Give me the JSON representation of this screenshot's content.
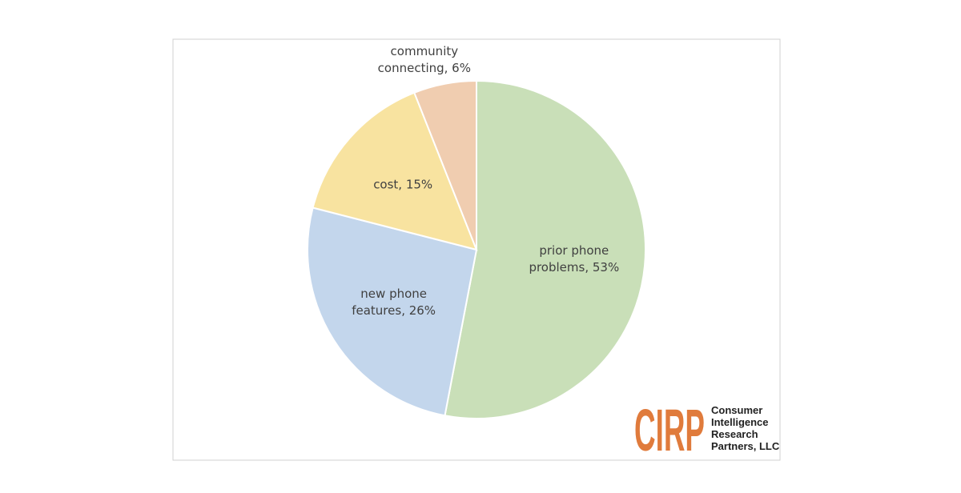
{
  "chart_data": {
    "type": "pie",
    "values": [
      53,
      26,
      15,
      6
    ],
    "value_labels": [
      "prior phone problems, 53%",
      "new phone features, 26%",
      "cost, 15%",
      "community connecting, 6%"
    ],
    "colors": [
      "#c9dfb8",
      "#c3d6ec",
      "#f8e3a0",
      "#f0cdb0"
    ]
  },
  "logo": {
    "mark": "CIRP",
    "name": [
      "Consumer",
      "Intelligence",
      "Research",
      "Partners, LLC"
    ]
  }
}
